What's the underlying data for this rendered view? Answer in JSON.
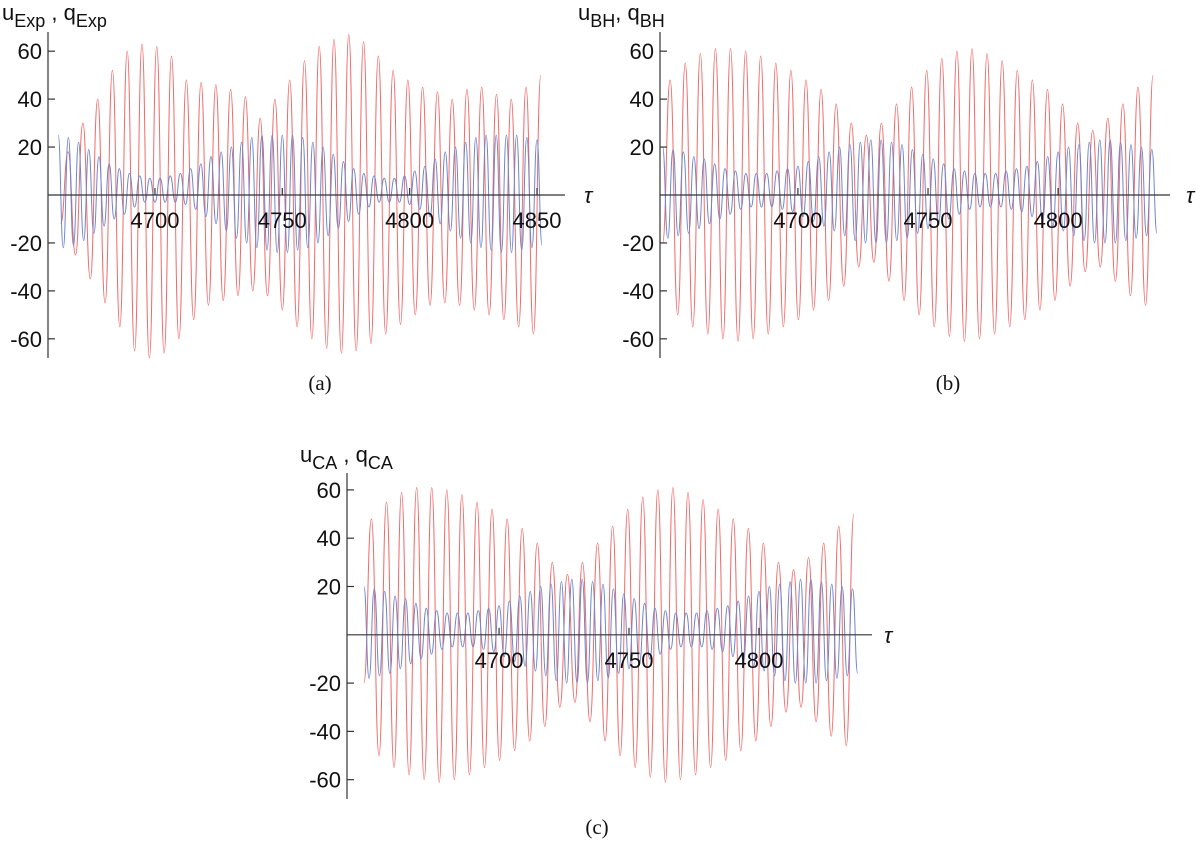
{
  "chart_data": [
    {
      "type": "line",
      "y_label": [
        "u",
        "Exp",
        " , q",
        "Exp"
      ],
      "x_label": "τ",
      "caption": "(a)",
      "xlim": [
        4658,
        4861
      ],
      "ylim": [
        -68,
        68
      ],
      "xticks": [
        4700,
        4750,
        4800,
        4850
      ],
      "yticks": [
        -60,
        -40,
        -20,
        20,
        40,
        60
      ],
      "series": [
        {
          "color": "#f26b6b",
          "x": [
            4663,
            4665.9,
            4668.8,
            4671.7,
            4674.6,
            4677.5,
            4680.4,
            4683.3,
            4686.2,
            4689.1,
            4692,
            4694.9,
            4697.8,
            4700.7,
            4703.6,
            4706.5,
            4709.4,
            4712.3,
            4715.2,
            4718.1,
            4721,
            4723.9,
            4726.8,
            4729.7,
            4732.6,
            4735.5,
            4738.4,
            4741.3,
            4744.2,
            4747.1,
            4750,
            4752.9,
            4755.8,
            4758.7,
            4761.6,
            4764.5,
            4767.4,
            4770.3,
            4773.2,
            4776.1,
            4779,
            4781.9,
            4784.8,
            4787.7,
            4790.6,
            4793.5,
            4796.4,
            4799.3,
            4802.2,
            4805.1,
            4808,
            4810.9,
            4813.8,
            4816.7,
            4819.6,
            4822.5,
            4825.4,
            4828.3,
            4831.2,
            4834.1,
            4837,
            4839.9,
            4842.8,
            4845.7,
            4848.6,
            4851.5
          ],
          "values": [
            -12,
            18,
            -25,
            30,
            -35,
            40,
            -45,
            52,
            -55,
            60,
            -65,
            63,
            -68,
            62,
            -66,
            58,
            -60,
            48,
            -52,
            47,
            -46,
            46,
            -44,
            44,
            -42,
            41,
            -40,
            32,
            -42,
            40,
            -48,
            48,
            -55,
            56,
            -60,
            62,
            -64,
            65,
            -66,
            67,
            -65,
            64,
            -62,
            58,
            -58,
            52,
            -54,
            48,
            -50,
            45,
            -46,
            43,
            -45,
            40,
            -46,
            44,
            -48,
            45,
            -50,
            42,
            -52,
            40,
            -55,
            45,
            -58,
            50
          ]
        },
        {
          "color": "#6f86cc",
          "x": [
            4662,
            4664,
            4666,
            4668,
            4670,
            4672,
            4674,
            4676,
            4678,
            4680,
            4682,
            4684,
            4686,
            4688,
            4690,
            4692,
            4694,
            4696,
            4698,
            4700,
            4702,
            4704,
            4706,
            4708,
            4710,
            4712,
            4714,
            4716,
            4718,
            4720,
            4722,
            4724,
            4726,
            4728,
            4730,
            4732,
            4734,
            4736,
            4738,
            4740,
            4742,
            4744,
            4746,
            4748,
            4750,
            4752,
            4754,
            4756,
            4758,
            4760,
            4762,
            4764,
            4766,
            4768,
            4770,
            4772,
            4774,
            4776,
            4778,
            4780,
            4782,
            4784,
            4786,
            4788,
            4790,
            4792,
            4794,
            4796,
            4798,
            4800,
            4802,
            4804,
            4806,
            4808,
            4810,
            4812,
            4814,
            4816,
            4818,
            4820,
            4822,
            4824,
            4826,
            4828,
            4830,
            4832,
            4834,
            4836,
            4838,
            4840,
            4842,
            4844,
            4846,
            4848,
            4850,
            4852
          ],
          "values": [
            25,
            -22,
            24,
            -21,
            22,
            -19,
            19,
            -16,
            16,
            -13,
            13,
            -10,
            11,
            -8,
            9,
            -5,
            8,
            -3,
            7,
            -3,
            7,
            -3,
            8,
            -3,
            9,
            -4,
            11,
            -6,
            13,
            -9,
            16,
            -12,
            18,
            -15,
            20,
            -18,
            22,
            -20,
            24,
            -22,
            25,
            -23,
            25,
            -24,
            25,
            -24,
            25,
            -23,
            24,
            -22,
            22,
            -20,
            20,
            -17,
            17,
            -14,
            14,
            -11,
            11,
            -8,
            9,
            -5,
            8,
            -3,
            7,
            -3,
            7,
            -3,
            8,
            -4,
            10,
            -6,
            12,
            -9,
            15,
            -12,
            18,
            -15,
            20,
            -18,
            22,
            -20,
            24,
            -22,
            25,
            -23,
            25,
            -24,
            25,
            -24,
            25,
            -23,
            24,
            -22,
            23,
            -21
          ]
        }
      ]
    },
    {
      "type": "line",
      "y_label": [
        "u",
        "BH",
        ", q",
        "BH"
      ],
      "x_label": "τ",
      "caption": "(b)",
      "xlim": [
        4647,
        4843
      ],
      "ylim": [
        -68,
        68
      ],
      "xticks": [
        4700,
        4750,
        4800
      ],
      "yticks": [
        -60,
        -40,
        -20,
        20,
        40,
        60
      ],
      "series": [
        {
          "color": "#f26b6b",
          "x": [
            4648,
            4650.9,
            4653.8,
            4656.7,
            4659.6,
            4662.5,
            4665.4,
            4668.3,
            4671.2,
            4674.1,
            4677,
            4679.9,
            4682.8,
            4685.7,
            4688.6,
            4691.5,
            4694.4,
            4697.3,
            4700.2,
            4703.1,
            4706,
            4708.9,
            4711.8,
            4714.7,
            4717.6,
            4720.5,
            4723.4,
            4726.3,
            4729.2,
            4732.1,
            4735,
            4737.9,
            4740.8,
            4743.7,
            4746.6,
            4749.5,
            4752.4,
            4755.3,
            4758.2,
            4761.1,
            4764,
            4766.9,
            4769.8,
            4772.7,
            4775.6,
            4778.5,
            4781.4,
            4784.3,
            4787.2,
            4790.1,
            4793,
            4795.9,
            4798.8,
            4801.7,
            4804.6,
            4807.5,
            4810.4,
            4813.3,
            4816.2,
            4819.1,
            4822,
            4824.9,
            4827.8,
            4830.7,
            4833.6,
            4836.5
          ],
          "values": [
            -20,
            48,
            -50,
            55,
            -55,
            59,
            -58,
            61,
            -60,
            61,
            -61,
            60,
            -60,
            58,
            -58,
            55,
            -55,
            52,
            -52,
            48,
            -48,
            44,
            -44,
            38,
            -38,
            30,
            -30,
            25,
            -28,
            30,
            -36,
            38,
            -44,
            45,
            -50,
            52,
            -55,
            57,
            -59,
            60,
            -61,
            61,
            -60,
            59,
            -58,
            56,
            -55,
            52,
            -52,
            48,
            -48,
            44,
            -44,
            38,
            -38,
            30,
            -32,
            27,
            -30,
            32,
            -36,
            38,
            -42,
            45,
            -46,
            50
          ]
        },
        {
          "color": "#6f86cc",
          "x": [
            4648,
            4650,
            4652,
            4654,
            4656,
            4658,
            4660,
            4662,
            4664,
            4666,
            4668,
            4670,
            4672,
            4674,
            4676,
            4678,
            4680,
            4682,
            4684,
            4686,
            4688,
            4690,
            4692,
            4694,
            4696,
            4698,
            4700,
            4702,
            4704,
            4706,
            4708,
            4710,
            4712,
            4714,
            4716,
            4718,
            4720,
            4722,
            4724,
            4726,
            4728,
            4730,
            4732,
            4734,
            4736,
            4738,
            4740,
            4742,
            4744,
            4746,
            4748,
            4750,
            4752,
            4754,
            4756,
            4758,
            4760,
            4762,
            4764,
            4766,
            4768,
            4770,
            4772,
            4774,
            4776,
            4778,
            4780,
            4782,
            4784,
            4786,
            4788,
            4790,
            4792,
            4794,
            4796,
            4798,
            4800,
            4802,
            4804,
            4806,
            4808,
            4810,
            4812,
            4814,
            4816,
            4818,
            4820,
            4822,
            4824,
            4826,
            4828,
            4830,
            4832,
            4834,
            4836,
            4838
          ],
          "values": [
            20,
            -18,
            19,
            -17,
            18,
            -16,
            16,
            -14,
            15,
            -12,
            13,
            -10,
            11,
            -8,
            10,
            -6,
            9,
            -5,
            9,
            -5,
            9,
            -5,
            10,
            -6,
            11,
            -7,
            12,
            -9,
            14,
            -11,
            16,
            -13,
            18,
            -15,
            20,
            -17,
            21,
            -19,
            22,
            -20,
            23,
            -20,
            23,
            -20,
            22,
            -19,
            21,
            -18,
            19,
            -16,
            17,
            -14,
            15,
            -12,
            13,
            -10,
            11,
            -8,
            10,
            -6,
            9,
            -5,
            9,
            -5,
            9,
            -5,
            10,
            -6,
            11,
            -7,
            12,
            -9,
            14,
            -11,
            16,
            -13,
            18,
            -15,
            20,
            -17,
            21,
            -19,
            22,
            -20,
            23,
            -20,
            23,
            -20,
            22,
            -19,
            21,
            -18,
            20,
            -17,
            19,
            -16
          ]
        }
      ]
    },
    {
      "type": "line",
      "y_label": [
        "u",
        "CA",
        " , q",
        "CA"
      ],
      "x_label": "τ",
      "caption": "(c)",
      "xlim": [
        4641.5,
        4843.5
      ],
      "ylim": [
        -68,
        67
      ],
      "xticks": [
        4700,
        4750,
        4800
      ],
      "yticks": [
        -60,
        -40,
        -20,
        20,
        40,
        60
      ],
      "series": [
        {
          "color": "#f26b6b",
          "x": [
            4648,
            4650.9,
            4653.8,
            4656.7,
            4659.6,
            4662.5,
            4665.4,
            4668.3,
            4671.2,
            4674.1,
            4677,
            4679.9,
            4682.8,
            4685.7,
            4688.6,
            4691.5,
            4694.4,
            4697.3,
            4700.2,
            4703.1,
            4706,
            4708.9,
            4711.8,
            4714.7,
            4717.6,
            4720.5,
            4723.4,
            4726.3,
            4729.2,
            4732.1,
            4735,
            4737.9,
            4740.8,
            4743.7,
            4746.6,
            4749.5,
            4752.4,
            4755.3,
            4758.2,
            4761.1,
            4764,
            4766.9,
            4769.8,
            4772.7,
            4775.6,
            4778.5,
            4781.4,
            4784.3,
            4787.2,
            4790.1,
            4793,
            4795.9,
            4798.8,
            4801.7,
            4804.6,
            4807.5,
            4810.4,
            4813.3,
            4816.2,
            4819.1,
            4822,
            4824.9,
            4827.8,
            4830.7,
            4833.6,
            4836.5
          ],
          "values": [
            -20,
            48,
            -50,
            55,
            -55,
            59,
            -58,
            61,
            -60,
            61,
            -61,
            60,
            -60,
            58,
            -58,
            55,
            -55,
            52,
            -52,
            48,
            -48,
            44,
            -44,
            38,
            -38,
            30,
            -30,
            25,
            -28,
            30,
            -36,
            38,
            -44,
            45,
            -50,
            52,
            -55,
            57,
            -59,
            60,
            -61,
            61,
            -60,
            59,
            -58,
            56,
            -55,
            52,
            -52,
            48,
            -48,
            44,
            -44,
            38,
            -38,
            30,
            -32,
            27,
            -30,
            32,
            -36,
            38,
            -42,
            45,
            -46,
            50
          ]
        },
        {
          "color": "#6f86cc",
          "x": [
            4648,
            4650,
            4652,
            4654,
            4656,
            4658,
            4660,
            4662,
            4664,
            4666,
            4668,
            4670,
            4672,
            4674,
            4676,
            4678,
            4680,
            4682,
            4684,
            4686,
            4688,
            4690,
            4692,
            4694,
            4696,
            4698,
            4700,
            4702,
            4704,
            4706,
            4708,
            4710,
            4712,
            4714,
            4716,
            4718,
            4720,
            4722,
            4724,
            4726,
            4728,
            4730,
            4732,
            4734,
            4736,
            4738,
            4740,
            4742,
            4744,
            4746,
            4748,
            4750,
            4752,
            4754,
            4756,
            4758,
            4760,
            4762,
            4764,
            4766,
            4768,
            4770,
            4772,
            4774,
            4776,
            4778,
            4780,
            4782,
            4784,
            4786,
            4788,
            4790,
            4792,
            4794,
            4796,
            4798,
            4800,
            4802,
            4804,
            4806,
            4808,
            4810,
            4812,
            4814,
            4816,
            4818,
            4820,
            4822,
            4824,
            4826,
            4828,
            4830,
            4832,
            4834,
            4836,
            4838
          ],
          "values": [
            20,
            -18,
            19,
            -17,
            18,
            -16,
            16,
            -14,
            15,
            -12,
            13,
            -10,
            11,
            -8,
            10,
            -6,
            9,
            -5,
            9,
            -5,
            9,
            -5,
            10,
            -6,
            11,
            -7,
            12,
            -9,
            14,
            -11,
            16,
            -13,
            18,
            -15,
            20,
            -17,
            21,
            -19,
            22,
            -20,
            23,
            -20,
            23,
            -20,
            22,
            -19,
            21,
            -18,
            19,
            -16,
            17,
            -14,
            15,
            -12,
            13,
            -10,
            11,
            -8,
            10,
            -6,
            9,
            -5,
            9,
            -5,
            9,
            -5,
            10,
            -6,
            11,
            -7,
            12,
            -9,
            14,
            -11,
            16,
            -13,
            18,
            -15,
            20,
            -17,
            21,
            -19,
            22,
            -20,
            23,
            -20,
            23,
            -20,
            22,
            -19,
            21,
            -18,
            20,
            -17,
            19,
            -16
          ]
        }
      ]
    }
  ]
}
